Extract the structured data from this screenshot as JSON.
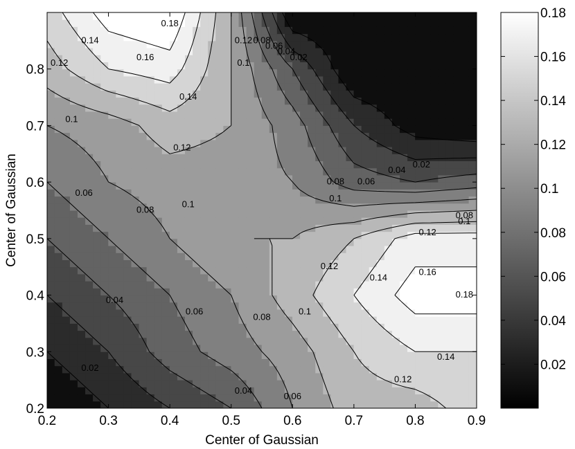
{
  "chart_data": {
    "type": "heatmap",
    "subtype": "filled-contour",
    "colormap": "gray",
    "title": "",
    "xlabel": "Center of Gaussian",
    "ylabel": "Center of Gaussian",
    "xlim": [
      0.2,
      0.9
    ],
    "ylim": [
      0.2,
      0.9
    ],
    "x": [
      0.2,
      0.3,
      0.4,
      0.5,
      0.6,
      0.7,
      0.8,
      0.9
    ],
    "y": [
      0.2,
      0.3,
      0.4,
      0.5,
      0.6,
      0.7,
      0.8,
      0.9
    ],
    "z": [
      [
        0.0,
        0.02,
        0.04,
        0.06,
        0.1,
        0.13,
        0.13,
        0.15
      ],
      [
        0.02,
        0.04,
        0.07,
        0.09,
        0.11,
        0.14,
        0.16,
        0.16
      ],
      [
        0.04,
        0.06,
        0.08,
        0.1,
        0.13,
        0.16,
        0.19,
        0.19
      ],
      [
        0.06,
        0.08,
        0.1,
        0.12,
        0.12,
        0.14,
        0.17,
        0.17
      ],
      [
        0.08,
        0.1,
        0.11,
        0.11,
        0.1,
        0.07,
        0.06,
        0.07
      ],
      [
        0.1,
        0.11,
        0.13,
        0.12,
        0.09,
        0.04,
        0.01,
        0.0
      ],
      [
        0.13,
        0.16,
        0.17,
        0.12,
        0.06,
        0.0,
        0.0,
        0.0
      ],
      [
        0.15,
        0.19,
        0.2,
        0.12,
        0.0,
        0.0,
        0.0,
        0.0
      ]
    ],
    "contour_levels": [
      0.02,
      0.04,
      0.06,
      0.08,
      0.1,
      0.12,
      0.14,
      0.16,
      0.18
    ],
    "x_ticks": [
      "0.2",
      "0.3",
      "0.4",
      "0.5",
      "0.6",
      "0.7",
      "0.8",
      "0.9"
    ],
    "y_ticks": [
      "0.2",
      "0.3",
      "0.4",
      "0.5",
      "0.6",
      "0.7",
      "0.8"
    ],
    "colorbar": {
      "range": [
        0,
        0.18
      ],
      "ticks": [
        "0.02",
        "0.04",
        "0.06",
        "0.08",
        "0.1",
        "0.12",
        "0.14",
        "0.16",
        "0.18"
      ]
    },
    "contour_labels": [
      {
        "text": "0.18",
        "x": 0.4,
        "y": 0.88
      },
      {
        "text": "0.14",
        "x": 0.27,
        "y": 0.85
      },
      {
        "text": "0.16",
        "x": 0.36,
        "y": 0.82
      },
      {
        "text": "0.12",
        "x": 0.22,
        "y": 0.81
      },
      {
        "text": "0.14",
        "x": 0.43,
        "y": 0.75
      },
      {
        "text": "0.1",
        "x": 0.24,
        "y": 0.71
      },
      {
        "text": "0.12",
        "x": 0.42,
        "y": 0.66
      },
      {
        "text": "0.12",
        "x": 0.52,
        "y": 0.85
      },
      {
        "text": "0.1",
        "x": 0.52,
        "y": 0.81
      },
      {
        "text": "0.08",
        "x": 0.55,
        "y": 0.85
      },
      {
        "text": "0.06",
        "x": 0.57,
        "y": 0.84
      },
      {
        "text": "0.04",
        "x": 0.59,
        "y": 0.83
      },
      {
        "text": "0.02",
        "x": 0.61,
        "y": 0.82
      },
      {
        "text": "0.06",
        "x": 0.26,
        "y": 0.58
      },
      {
        "text": "0.08",
        "x": 0.36,
        "y": 0.55
      },
      {
        "text": "0.1",
        "x": 0.43,
        "y": 0.56
      },
      {
        "text": "0.08",
        "x": 0.67,
        "y": 0.6
      },
      {
        "text": "0.1",
        "x": 0.67,
        "y": 0.57
      },
      {
        "text": "0.06",
        "x": 0.72,
        "y": 0.6
      },
      {
        "text": "0.04",
        "x": 0.77,
        "y": 0.62
      },
      {
        "text": "0.02",
        "x": 0.81,
        "y": 0.63
      },
      {
        "text": "0.08",
        "x": 0.88,
        "y": 0.54
      },
      {
        "text": "0.1",
        "x": 0.88,
        "y": 0.53
      },
      {
        "text": "0.12",
        "x": 0.82,
        "y": 0.51
      },
      {
        "text": "0.12",
        "x": 0.66,
        "y": 0.45
      },
      {
        "text": "0.14",
        "x": 0.74,
        "y": 0.43
      },
      {
        "text": "0.16",
        "x": 0.82,
        "y": 0.44
      },
      {
        "text": "0.18",
        "x": 0.88,
        "y": 0.4
      },
      {
        "text": "0.04",
        "x": 0.31,
        "y": 0.39
      },
      {
        "text": "0.06",
        "x": 0.44,
        "y": 0.37
      },
      {
        "text": "0.08",
        "x": 0.55,
        "y": 0.36
      },
      {
        "text": "0.1",
        "x": 0.62,
        "y": 0.37
      },
      {
        "text": "0.14",
        "x": 0.85,
        "y": 0.29
      },
      {
        "text": "0.12",
        "x": 0.78,
        "y": 0.25
      },
      {
        "text": "0.04",
        "x": 0.52,
        "y": 0.23
      },
      {
        "text": "0.06",
        "x": 0.6,
        "y": 0.22
      },
      {
        "text": "0.02",
        "x": 0.27,
        "y": 0.27
      }
    ]
  }
}
